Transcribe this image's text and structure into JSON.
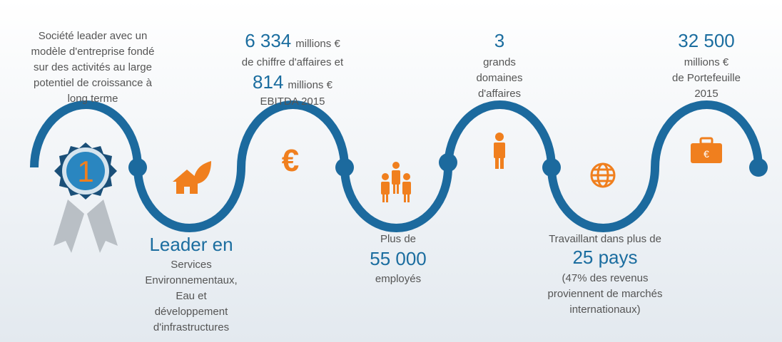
{
  "badge": {
    "number": "1"
  },
  "icons": {
    "euro_sign": "€",
    "briefcase_sign": "€"
  },
  "leader": {
    "lines": [
      "Société leader avec un",
      "modèle d'entreprise fondé",
      "sur des activités au large",
      "potentiel de croissance à",
      "long terme"
    ]
  },
  "revenue": {
    "figure_1": "6 334",
    "unit_1": "millions €",
    "line_1": "de chiffre d'affaires et",
    "figure_2": "814",
    "unit_2": "millions €",
    "line_2": "EBITDA 2015"
  },
  "domains": {
    "figure": "3",
    "lines": [
      "grands",
      "domaines",
      "d'affaires"
    ]
  },
  "portfolio": {
    "figure": "32 500",
    "lines": [
      "millions €",
      "de Portefeuille",
      "2015"
    ]
  },
  "services": {
    "heading": "Leader en",
    "lines": [
      "Services",
      "Environnementaux,",
      "Eau et",
      "développement",
      "d'infrastructures"
    ]
  },
  "employees": {
    "intro": "Plus de",
    "figure": "55 000",
    "line": "employés"
  },
  "countries": {
    "intro": "Travaillant dans plus de",
    "figure": "25 pays",
    "lines": [
      "(47% des revenus",
      "proviennent de marchés",
      "internationaux)"
    ]
  }
}
